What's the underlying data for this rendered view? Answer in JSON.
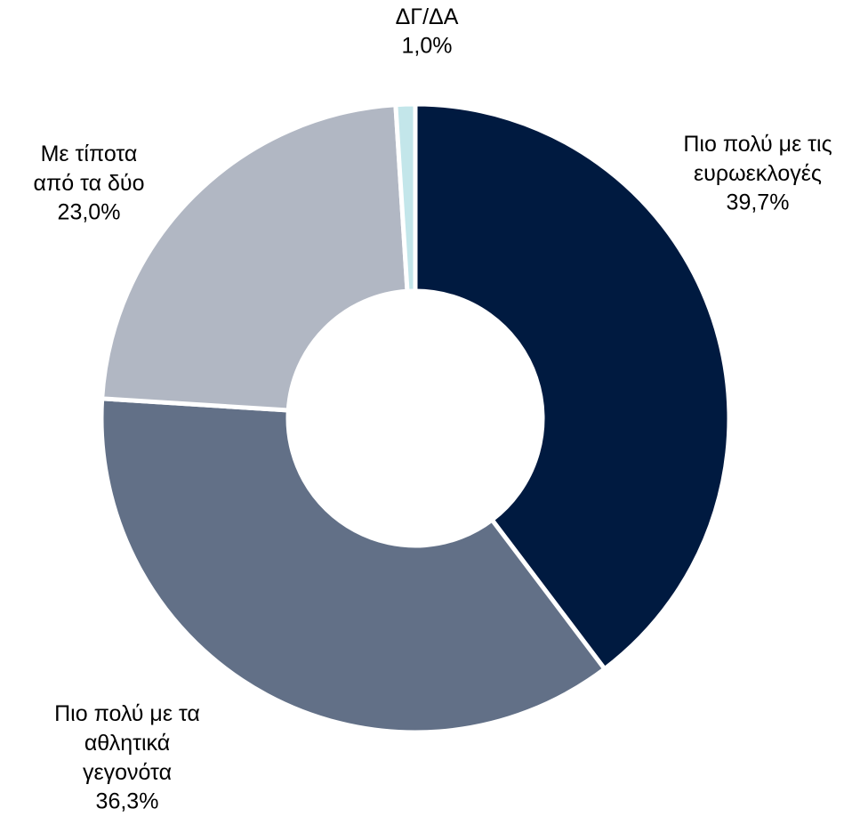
{
  "chart_data": {
    "type": "donut",
    "categories": [
      "Πιο πολύ με τις ευρωεκλογές",
      "Πιο πολύ με τα αθλητικά γεγονότα",
      "Με τίποτα από τα δύο",
      "ΔΓ/ΔΑ"
    ],
    "values": [
      39.7,
      36.3,
      23.0,
      1.0
    ],
    "value_labels": [
      "39,7%",
      "36,3%",
      "23,0%",
      "1,0%"
    ],
    "colors": [
      "#001a40",
      "#627087",
      "#b1b7c3",
      "#c3e6ea"
    ]
  }
}
